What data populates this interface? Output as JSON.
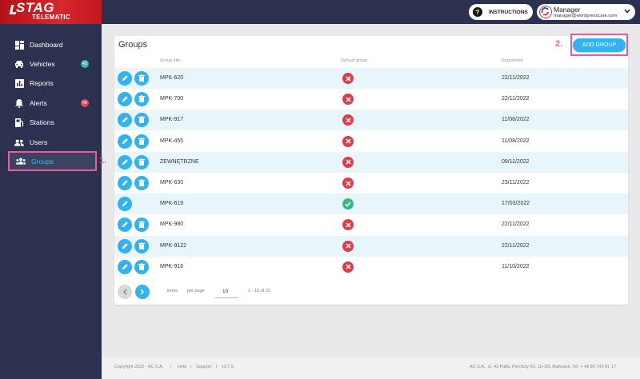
{
  "brand": {
    "line1": "STAG",
    "line2": "TELEMATIC"
  },
  "header": {
    "instructions_label": "INSTRUCTIONS",
    "user_name": "Manager",
    "user_email": "manager@wordpresscare.com"
  },
  "sidebar": {
    "items": [
      {
        "label": "Dashboard",
        "icon": "dashboard-icon"
      },
      {
        "label": "Vehicles",
        "icon": "car-icon",
        "badge": "45"
      },
      {
        "label": "Reports",
        "icon": "bar-chart-icon"
      },
      {
        "label": "Alerts",
        "icon": "bell-icon",
        "badge": "66"
      },
      {
        "label": "Stations",
        "icon": "fuel-station-icon"
      },
      {
        "label": "Users",
        "icon": "users-icon"
      },
      {
        "label": "Groups",
        "icon": "group-icon",
        "active": true
      }
    ]
  },
  "markers": {
    "one": "1.",
    "two": "2."
  },
  "main": {
    "title": "Groups",
    "add_button": "ADD GROUP",
    "columns": {
      "title": "Group title",
      "default": "Default group",
      "registered": "Registered"
    },
    "rows": [
      {
        "title": "MPK-620",
        "default": false,
        "registered": "22/11/2022",
        "deletable": true
      },
      {
        "title": "MPK-700",
        "default": false,
        "registered": "22/11/2022",
        "deletable": true
      },
      {
        "title": "MPK-917",
        "default": false,
        "registered": "11/08/2022",
        "deletable": true
      },
      {
        "title": "MPK-455",
        "default": false,
        "registered": "11/08/2022",
        "deletable": true
      },
      {
        "title": "ZEWNĘTRZNE",
        "default": false,
        "registered": "09/11/2022",
        "deletable": true
      },
      {
        "title": "MPK-630",
        "default": false,
        "registered": "23/11/2022",
        "deletable": true
      },
      {
        "title": "MPK-619",
        "default": true,
        "registered": "17/03/2022",
        "deletable": false
      },
      {
        "title": "MPK-980",
        "default": false,
        "registered": "22/11/2022",
        "deletable": true
      },
      {
        "title": "MPK-9122",
        "default": false,
        "registered": "22/11/2022",
        "deletable": true
      },
      {
        "title": "MPK-916",
        "default": false,
        "registered": "11/10/2022",
        "deletable": true
      }
    ],
    "pagination": {
      "items_label": "items",
      "per_page_label": "per page",
      "per_page_value": "10",
      "range": "1 - 10 of 22"
    }
  },
  "footer": {
    "copyright": "Copyright 2022 - AC S.A.",
    "help": "Help",
    "support": "Support",
    "version": "v3.7.9",
    "address": "AC S.A., ul. 42 Pułku Piechoty 50, 15-181 Białystok, Tel: + 48 85 743 81 17"
  },
  "colors": {
    "accent": "#33b2ef",
    "sidebar": "#2c3150",
    "highlight": "#ec5a9e",
    "error": "#d9404a",
    "success": "#39b887"
  }
}
